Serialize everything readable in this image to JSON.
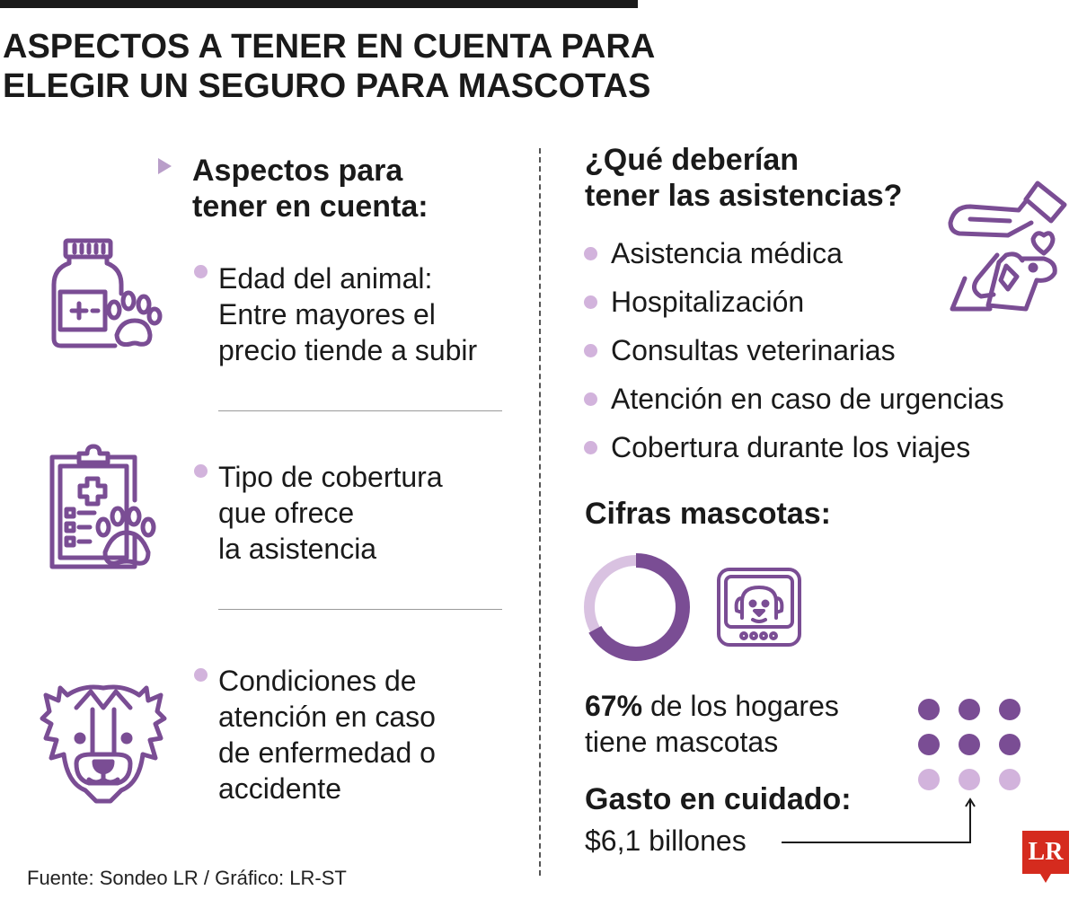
{
  "title": {
    "line1": "ASPECTOS A TENER EN CUENTA PARA",
    "line2": "ELEGIR UN SEGURO PARA MASCOTAS"
  },
  "left": {
    "heading_line1": "Aspectos para",
    "heading_line2": "tener en cuenta:",
    "items": [
      {
        "icon": "medicine-bottle-paw-icon",
        "lines": [
          "Edad del animal:",
          "Entre mayores el",
          "precio tiende a subir"
        ]
      },
      {
        "icon": "clipboard-paw-icon",
        "lines": [
          "Tipo de cobertura",
          "que ofrece",
          "la asistencia"
        ]
      },
      {
        "icon": "dog-face-icon",
        "lines": [
          "Condiciones de",
          "atención en caso",
          "de enfermedad o",
          "accidente"
        ]
      }
    ]
  },
  "right": {
    "heading_line1": "¿Qué deberían",
    "heading_line2": "tener las asistencias?",
    "assist_icon": "hand-petting-dog-icon",
    "assistances": [
      "Asistencia médica",
      "Hospitalización",
      "Consultas veterinarias",
      "Atención en caso de urgencias",
      "Cobertura durante los viajes"
    ],
    "cifras_heading": "Cifras mascotas:",
    "donut_percent": 67,
    "pet_carrier_icon": "pet-carrier-icon",
    "stat_percent": "67%",
    "stat_text_line1": " de los hogares",
    "stat_text_line2": "tiene mascotas",
    "gasto_heading": "Gasto en cuidado:",
    "gasto_value": "$6,1 billones"
  },
  "dots": {
    "filled": 6,
    "total": 9
  },
  "colors": {
    "accent_dark": "#7a4d94",
    "accent_light": "#d2b3dc",
    "donut_light": "#d9c2e1",
    "logo_red": "#d52b1e"
  },
  "source": "Fuente: Sondeo LR / Gráfico: LR-ST",
  "logo": "LR"
}
